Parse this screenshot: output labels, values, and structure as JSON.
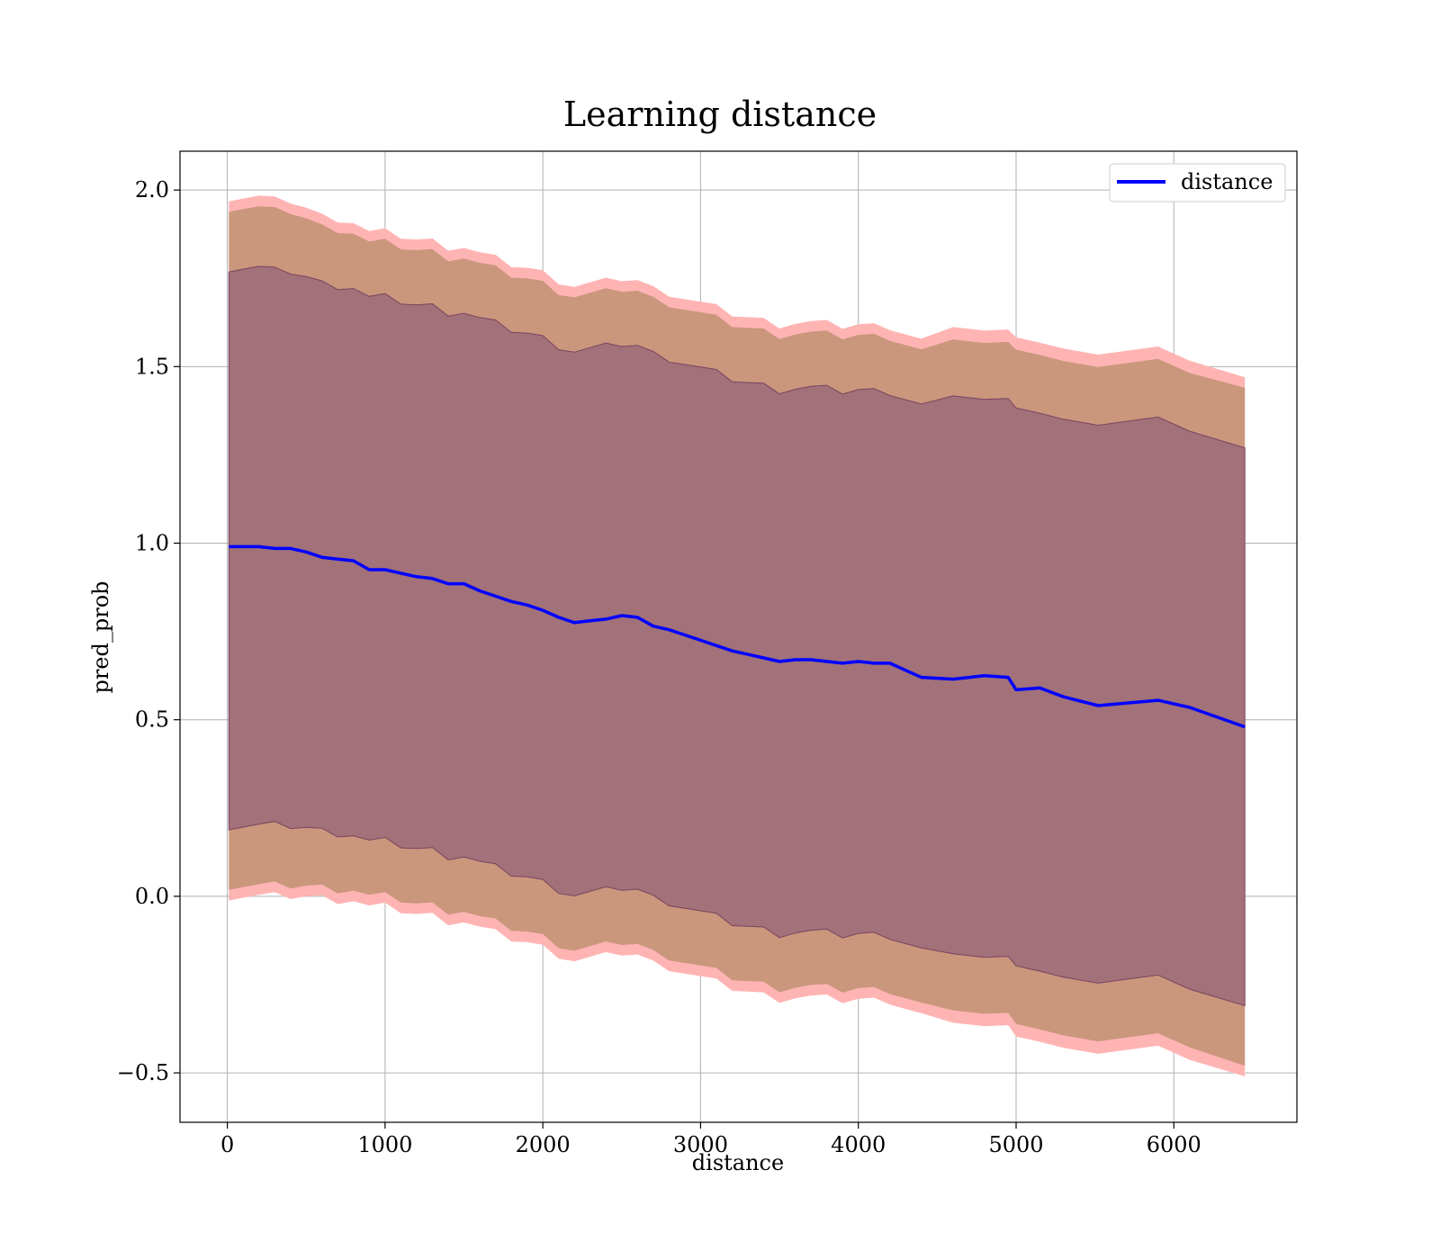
{
  "chart_data": {
    "type": "line",
    "title": "Learning distance",
    "xlabel": "distance",
    "ylabel": "pred_prob",
    "xlim": [
      -300,
      6780
    ],
    "ylim": [
      -0.64,
      2.11
    ],
    "xticks": [
      0,
      1000,
      2000,
      3000,
      4000,
      5000,
      6000
    ],
    "xtick_labels": [
      "0",
      "1000",
      "2000",
      "3000",
      "4000",
      "5000",
      "6000"
    ],
    "yticks": [
      -0.5,
      0.0,
      0.5,
      1.0,
      1.5,
      2.0
    ],
    "ytick_labels": [
      "−0.5",
      "0.0",
      "0.5",
      "1.0",
      "1.5",
      "2.0"
    ],
    "grid": true,
    "legend": {
      "position": "top-right",
      "entries": [
        "distance"
      ]
    },
    "colors": {
      "line": "#0000ff",
      "band_outer": "#ffb3b3",
      "band_middle": "#c9967b",
      "band_inner": "#a17079",
      "band_inner_edge": "#7a4460",
      "grid": "#b0b0b0"
    },
    "x": [
      10,
      100,
      200,
      300,
      400,
      500,
      600,
      700,
      800,
      900,
      1000,
      1100,
      1200,
      1300,
      1400,
      1500,
      1600,
      1700,
      1800,
      1900,
      2000,
      2100,
      2200,
      2300,
      2400,
      2500,
      2600,
      2700,
      2800,
      2900,
      3000,
      3100,
      3200,
      3300,
      3400,
      3500,
      3600,
      3700,
      3800,
      3900,
      4000,
      4100,
      4200,
      4300,
      4400,
      4600,
      4800,
      4950,
      5000,
      5150,
      5300,
      5520,
      5900,
      6100,
      6450
    ],
    "series": [
      {
        "name": "distance",
        "values": [
          0.99,
          0.99,
          0.99,
          0.985,
          0.985,
          0.975,
          0.96,
          0.955,
          0.95,
          0.925,
          0.925,
          0.915,
          0.905,
          0.9,
          0.885,
          0.885,
          0.865,
          0.85,
          0.835,
          0.825,
          0.81,
          0.79,
          0.775,
          0.78,
          0.785,
          0.795,
          0.79,
          0.765,
          0.755,
          0.74,
          0.725,
          0.71,
          0.695,
          0.685,
          0.675,
          0.665,
          0.67,
          0.67,
          0.665,
          0.66,
          0.665,
          0.66,
          0.66,
          0.64,
          0.62,
          0.615,
          0.625,
          0.62,
          0.585,
          0.59,
          0.565,
          0.54,
          0.555,
          0.535,
          0.48
        ]
      }
    ],
    "bands": [
      {
        "sigma": 3,
        "color": "band_outer",
        "width": [
          0.99,
          0.99,
          0.99,
          0.985,
          0.985,
          0.975,
          0.965,
          0.965,
          0.96,
          0.955,
          0.955,
          0.955,
          0.955,
          0.955,
          0.955,
          0.955,
          0.955,
          0.955,
          0.955,
          0.955,
          0.955,
          0.955,
          0.955,
          0.955,
          0.955,
          0.955,
          0.955,
          0.955,
          0.955,
          0.955,
          0.955,
          0.955,
          0.955,
          0.955,
          0.955,
          0.955,
          0.955,
          0.955,
          0.955,
          0.955,
          0.955,
          0.955,
          0.955,
          0.955,
          0.955,
          0.985,
          0.985,
          0.985,
          0.99,
          0.99,
          0.99,
          0.99,
          0.99,
          0.99,
          0.99
        ]
      },
      {
        "sigma": 2,
        "color": "band_middle",
        "width": [
          0.96,
          0.96,
          0.96,
          0.955,
          0.955,
          0.945,
          0.935,
          0.935,
          0.93,
          0.925,
          0.925,
          0.925,
          0.925,
          0.925,
          0.925,
          0.925,
          0.925,
          0.925,
          0.925,
          0.925,
          0.925,
          0.925,
          0.925,
          0.925,
          0.925,
          0.925,
          0.925,
          0.925,
          0.925,
          0.925,
          0.925,
          0.925,
          0.925,
          0.925,
          0.925,
          0.925,
          0.925,
          0.925,
          0.925,
          0.925,
          0.925,
          0.925,
          0.925,
          0.925,
          0.925,
          0.95,
          0.95,
          0.95,
          0.955,
          0.955,
          0.955,
          0.955,
          0.955,
          0.955,
          0.96
        ]
      },
      {
        "sigma": 1,
        "color": "band_inner",
        "width": [
          0.79,
          0.79,
          0.79,
          0.785,
          0.785,
          0.78,
          0.775,
          0.775,
          0.775,
          0.77,
          0.77,
          0.77,
          0.77,
          0.77,
          0.77,
          0.77,
          0.77,
          0.77,
          0.77,
          0.77,
          0.77,
          0.77,
          0.77,
          0.77,
          0.77,
          0.77,
          0.77,
          0.77,
          0.77,
          0.77,
          0.77,
          0.77,
          0.77,
          0.77,
          0.77,
          0.77,
          0.77,
          0.77,
          0.77,
          0.77,
          0.77,
          0.77,
          0.77,
          0.77,
          0.77,
          0.79,
          0.79,
          0.79,
          0.79,
          0.79,
          0.79,
          0.79,
          0.79,
          0.79,
          0.79
        ]
      }
    ]
  }
}
